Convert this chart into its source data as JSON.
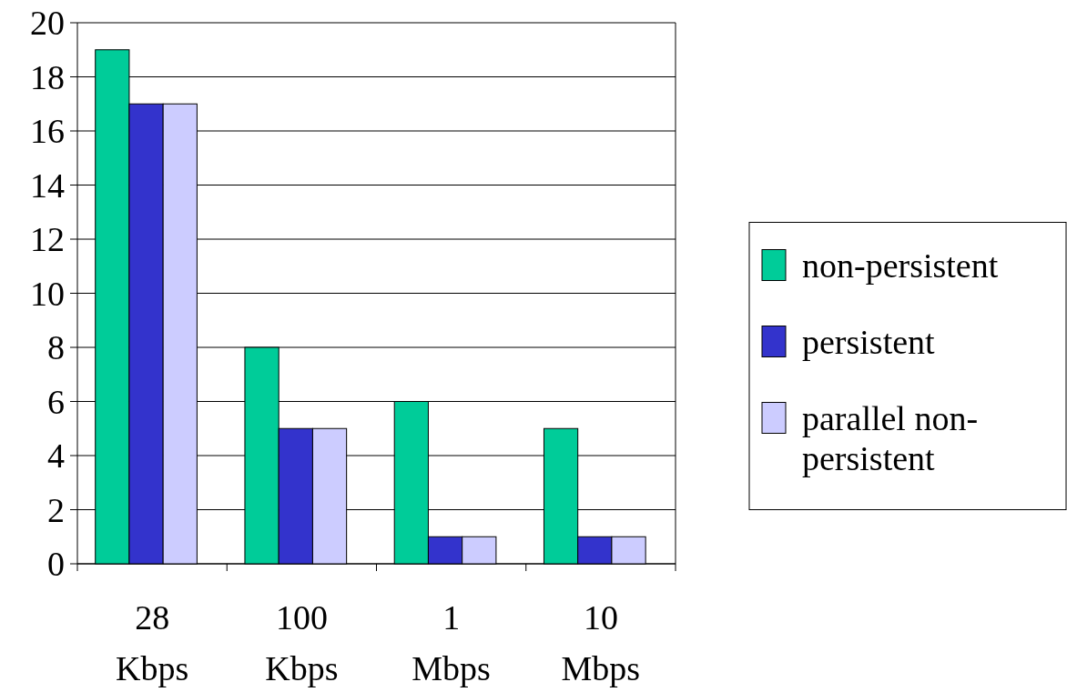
{
  "chart_data": {
    "type": "bar",
    "categories": [
      "28 Kbps",
      "100 Kbps",
      "1 Mbps",
      "10 Mbps"
    ],
    "series": [
      {
        "name": "non-persistent",
        "color": "#00cc99",
        "values": [
          19,
          8,
          6,
          5
        ]
      },
      {
        "name": "persistent",
        "color": "#3333cc",
        "values": [
          17,
          5,
          1,
          1
        ]
      },
      {
        "name": "parallel non-persistent",
        "color": "#ccccff",
        "values": [
          17,
          5,
          1,
          1
        ]
      }
    ],
    "ylim": [
      0,
      20
    ],
    "yticks": [
      0,
      2,
      4,
      6,
      8,
      10,
      12,
      14,
      16,
      18,
      20
    ],
    "grid": "y",
    "legend": "right"
  }
}
